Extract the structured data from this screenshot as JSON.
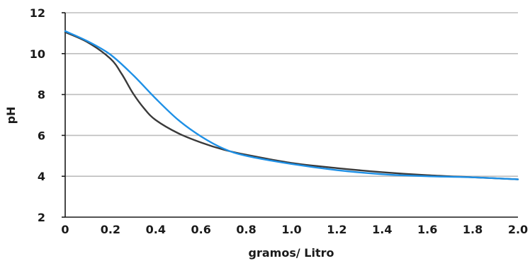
{
  "chart_data": {
    "type": "line",
    "title": "",
    "xlabel": "gramos/ Litro",
    "ylabel": "pH",
    "xlim": [
      0,
      2.0
    ],
    "ylim": [
      2,
      12
    ],
    "x_ticks": [
      "0",
      "0.2",
      "0.4",
      "0.6",
      "0.8",
      "1.0",
      "1.2",
      "1.4",
      "1.6",
      "1.8",
      "2.0"
    ],
    "y_ticks": [
      "2",
      "4",
      "6",
      "8",
      "10",
      "12"
    ],
    "grid": "horizontal",
    "legend": "none",
    "series": [
      {
        "color": "#3a3a3a",
        "x": [
          0,
          0.1,
          0.2,
          0.25,
          0.3,
          0.35,
          0.4,
          0.5,
          0.6,
          0.7,
          0.8,
          1.0,
          1.2,
          1.4,
          1.6,
          1.8,
          2.0
        ],
        "y": [
          11.05,
          10.55,
          9.75,
          9.0,
          8.05,
          7.3,
          6.75,
          6.1,
          5.65,
          5.3,
          5.05,
          4.65,
          4.4,
          4.2,
          4.05,
          3.95,
          3.85
        ]
      },
      {
        "color": "#1e90e6",
        "x": [
          0,
          0.1,
          0.2,
          0.3,
          0.4,
          0.5,
          0.6,
          0.7,
          0.8,
          1.0,
          1.2,
          1.4,
          1.6,
          1.8,
          2.0
        ],
        "y": [
          11.1,
          10.6,
          9.95,
          8.95,
          7.8,
          6.75,
          5.95,
          5.35,
          5.0,
          4.6,
          4.3,
          4.1,
          4.0,
          3.95,
          3.85
        ]
      }
    ]
  }
}
